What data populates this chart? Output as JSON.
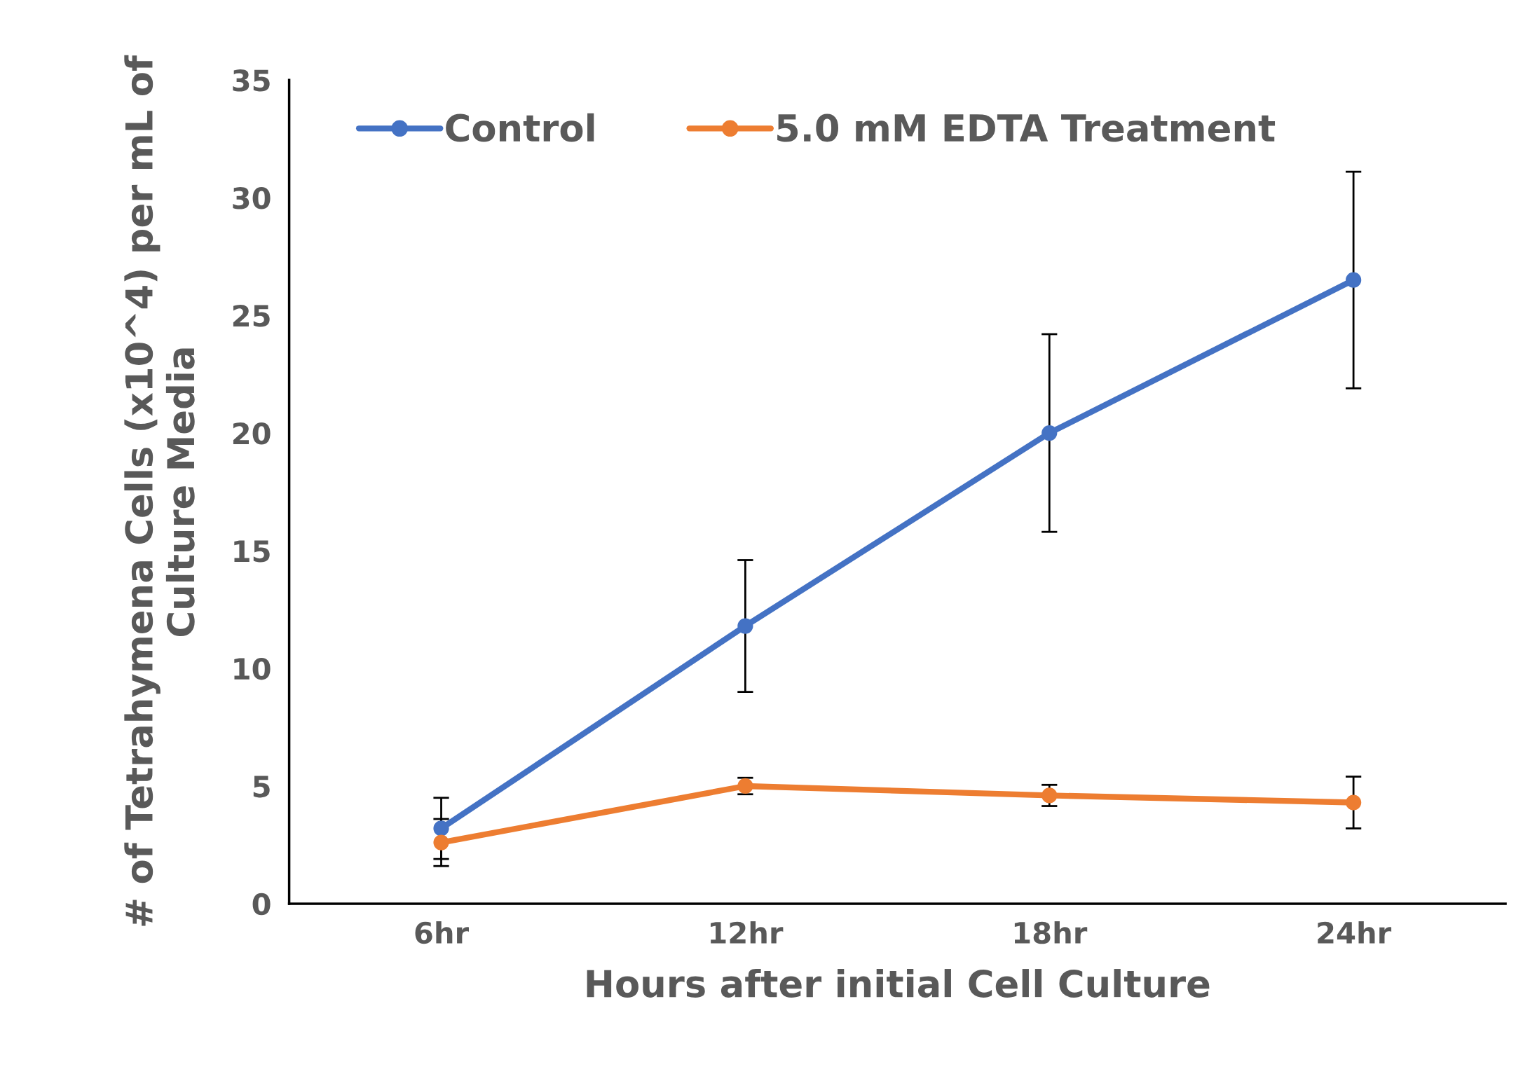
{
  "chart_data": {
    "type": "line",
    "xlabel": "Hours after initial Cell Culture",
    "ylabel": "# of Tetrahymena Cells (x10^4) per mL of\nCulture Media",
    "categories": [
      "6hr",
      "12hr",
      "18hr",
      "24hr"
    ],
    "series": [
      {
        "name": "Control",
        "color": "#4472c4",
        "values": [
          3.2,
          11.8,
          20.0,
          26.5
        ],
        "errors": [
          1.3,
          2.8,
          4.2,
          4.6
        ]
      },
      {
        "name": "5.0 mM EDTA Treatment",
        "color": "#ed7d31",
        "values": [
          2.6,
          5.0,
          4.6,
          4.3
        ],
        "errors": [
          1.0,
          0.35,
          0.45,
          1.1
        ]
      }
    ],
    "ylim": [
      0,
      35
    ],
    "yticks": [
      0,
      5,
      10,
      15,
      20,
      25,
      30,
      35
    ],
    "grid": false,
    "legend": "top left",
    "marker": "circle",
    "line_style": "solid"
  }
}
